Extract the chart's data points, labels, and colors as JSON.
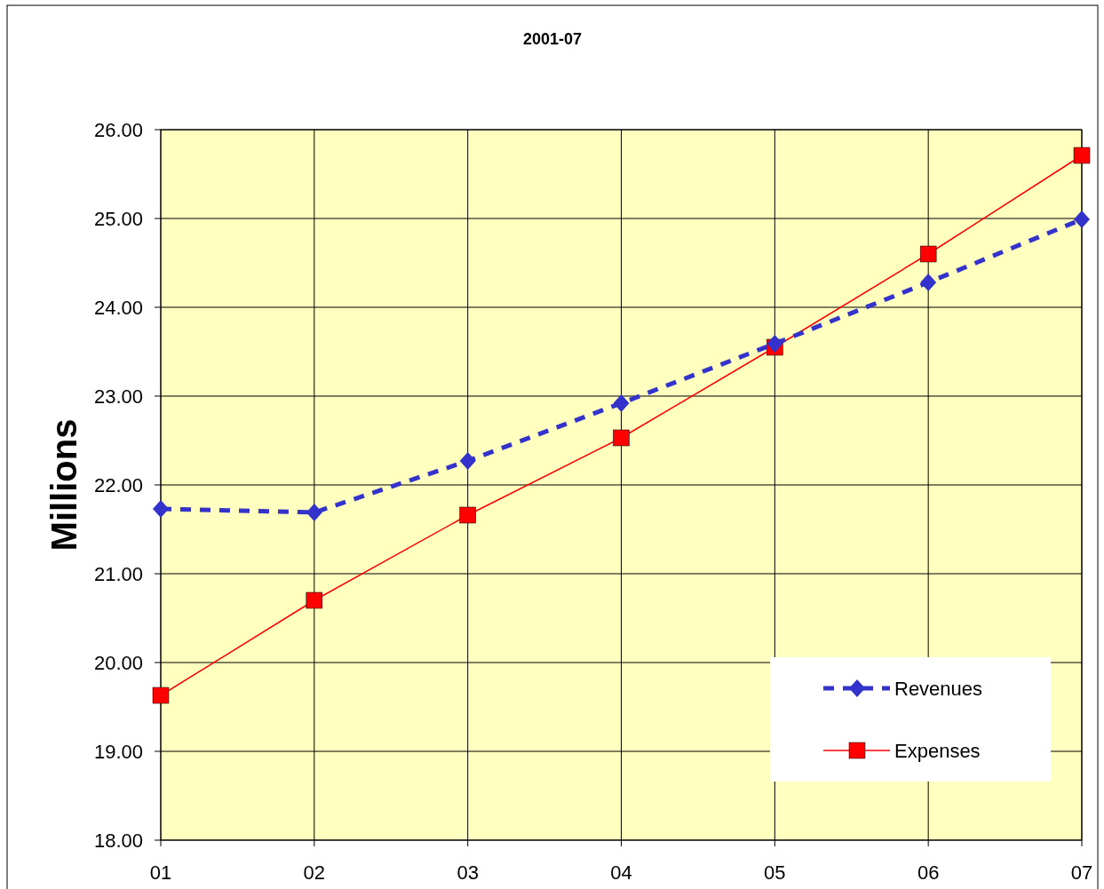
{
  "chart_data": {
    "type": "line",
    "title": "2001-07",
    "ylabel": "Millions",
    "categories": [
      "01",
      "02",
      "03",
      "04",
      "05",
      "06",
      "07"
    ],
    "series": [
      {
        "name": "Revenues",
        "color": "#3333cc",
        "values": [
          21.73,
          21.69,
          22.27,
          22.92,
          23.59,
          24.28,
          24.99
        ],
        "marker": "diamond",
        "line_style": "dashed"
      },
      {
        "name": "Expenses",
        "color": "#ff0000",
        "values": [
          19.63,
          20.7,
          21.66,
          22.53,
          23.55,
          24.6,
          25.71
        ],
        "marker": "square",
        "line_style": "solid"
      }
    ],
    "ylim": [
      18,
      26
    ],
    "yticks": [
      {
        "value": 18,
        "label": "18.00"
      },
      {
        "value": 19,
        "label": "19.00"
      },
      {
        "value": 20,
        "label": "20.00"
      },
      {
        "value": 21,
        "label": "21.00"
      },
      {
        "value": 22,
        "label": "22.00"
      },
      {
        "value": 23,
        "label": "23.00"
      },
      {
        "value": 24,
        "label": "24.00"
      },
      {
        "value": 25,
        "label": "25.00"
      },
      {
        "value": 26,
        "label": "26.00"
      }
    ],
    "grid": true,
    "legend": "bottom right"
  }
}
